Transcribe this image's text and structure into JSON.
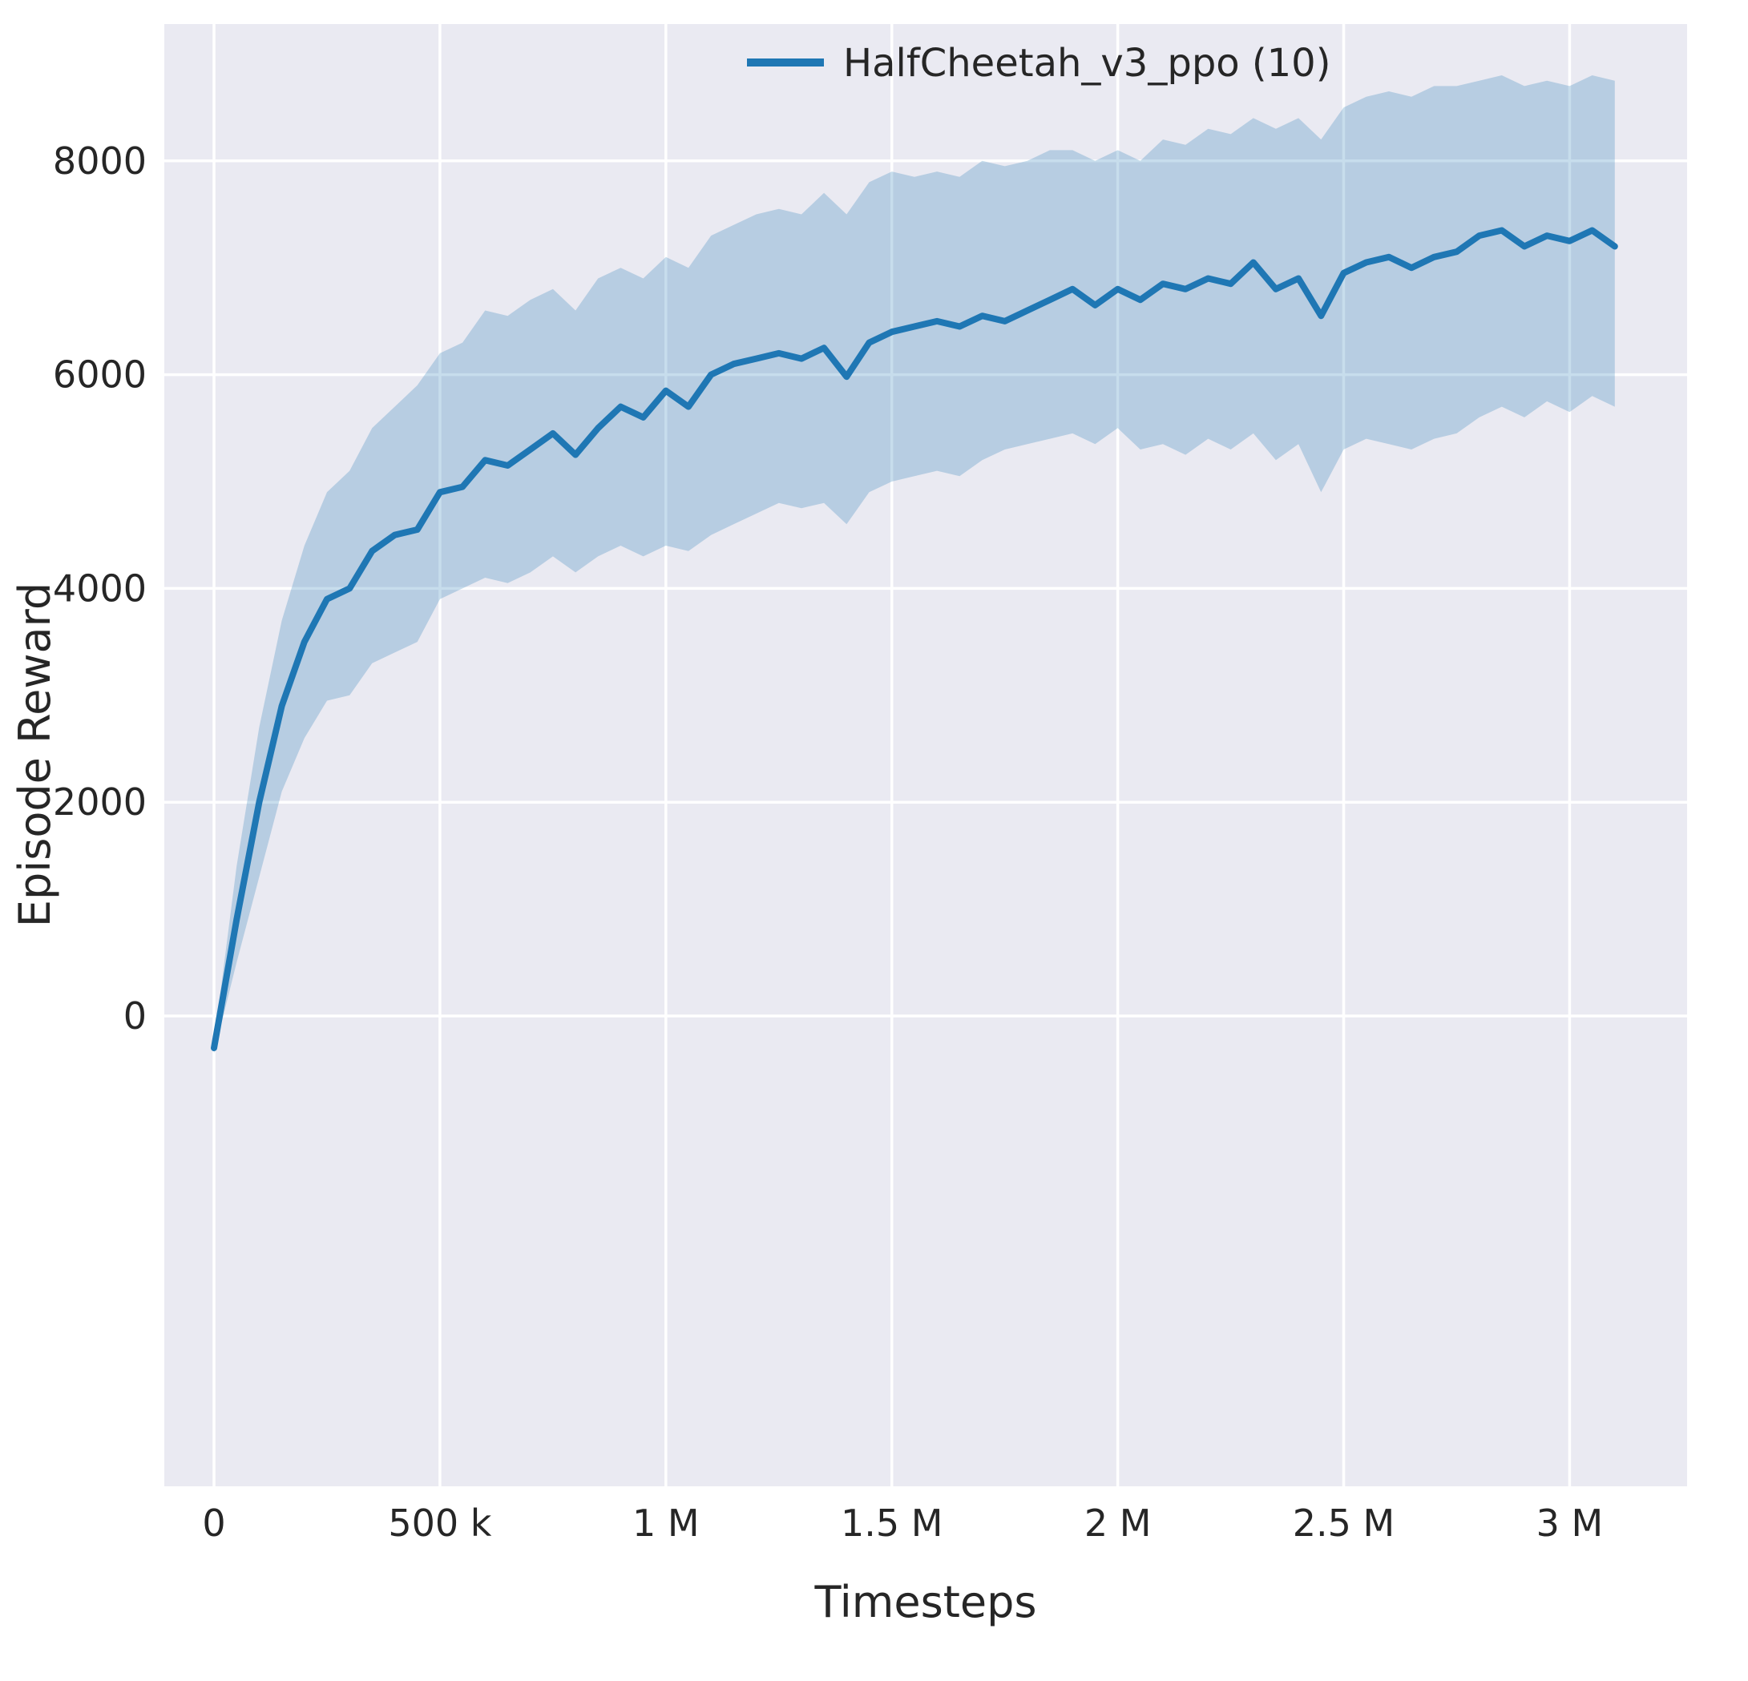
{
  "figure": {
    "background": "#ffffff",
    "plot_background": "#eaeaf2",
    "grid_color": "#ffffff",
    "text_color": "#262626",
    "line_color": "#1f77b4",
    "band_color": "#1f77b4",
    "band_opacity": 0.25
  },
  "chart_data": {
    "type": "line",
    "title": "",
    "xlabel": "Timesteps",
    "ylabel": "Episode Reward",
    "grid": true,
    "legend_position": "upper right",
    "legend": [
      {
        "label": "HalfCheetah_v3_ppo (10)",
        "color": "#1f77b4"
      }
    ],
    "xlim": [
      -110000,
      3260000
    ],
    "ylim": [
      -4400,
      9280
    ],
    "xticks": [
      {
        "value": 0,
        "label": "0"
      },
      {
        "value": 500000,
        "label": "500 k"
      },
      {
        "value": 1000000,
        "label": "1 M"
      },
      {
        "value": 1500000,
        "label": "1.5 M"
      },
      {
        "value": 2000000,
        "label": "2 M"
      },
      {
        "value": 2500000,
        "label": "2.5 M"
      },
      {
        "value": 3000000,
        "label": "3 M"
      }
    ],
    "yticks": [
      {
        "value": 0,
        "label": "0"
      },
      {
        "value": 2000,
        "label": "2000"
      },
      {
        "value": 4000,
        "label": "4000"
      },
      {
        "value": 6000,
        "label": "6000"
      },
      {
        "value": 8000,
        "label": "8000"
      }
    ],
    "series": [
      {
        "name": "HalfCheetah_v3_ppo (10)",
        "x": [
          0,
          50000,
          100000,
          150000,
          200000,
          250000,
          300000,
          350000,
          400000,
          450000,
          500000,
          550000,
          600000,
          650000,
          700000,
          750000,
          800000,
          850000,
          900000,
          950000,
          1000000,
          1050000,
          1100000,
          1150000,
          1200000,
          1250000,
          1300000,
          1350000,
          1400000,
          1450000,
          1500000,
          1550000,
          1600000,
          1650000,
          1700000,
          1750000,
          1800000,
          1850000,
          1900000,
          1950000,
          2000000,
          2050000,
          2100000,
          2150000,
          2200000,
          2250000,
          2300000,
          2350000,
          2400000,
          2450000,
          2500000,
          2550000,
          2600000,
          2650000,
          2700000,
          2750000,
          2800000,
          2850000,
          2900000,
          2950000,
          3000000,
          3050000,
          3100000
        ],
        "mean": [
          -300,
          900,
          2000,
          2900,
          3500,
          3900,
          4000,
          4350,
          4500,
          4550,
          4900,
          4950,
          5200,
          5150,
          5300,
          5450,
          5250,
          5500,
          5700,
          5600,
          5850,
          5700,
          6000,
          6100,
          6150,
          6200,
          6150,
          6250,
          5980,
          6300,
          6400,
          6450,
          6500,
          6450,
          6550,
          6500,
          6600,
          6700,
          6800,
          6650,
          6800,
          6700,
          6850,
          6800,
          6900,
          6850,
          7050,
          6800,
          6900,
          6550,
          6950,
          7050,
          7100,
          7000,
          7100,
          7150,
          7300,
          7350,
          7200,
          7300,
          7250,
          7350,
          7200
        ],
        "lower": [
          -350,
          500,
          1300,
          2100,
          2600,
          2950,
          3000,
          3300,
          3400,
          3500,
          3900,
          4000,
          4100,
          4050,
          4150,
          4300,
          4150,
          4300,
          4400,
          4300,
          4400,
          4350,
          4500,
          4600,
          4700,
          4800,
          4750,
          4800,
          4600,
          4900,
          5000,
          5050,
          5100,
          5050,
          5200,
          5300,
          5350,
          5400,
          5450,
          5350,
          5500,
          5300,
          5350,
          5250,
          5400,
          5300,
          5450,
          5200,
          5350,
          4900,
          5300,
          5400,
          5350,
          5300,
          5400,
          5450,
          5600,
          5700,
          5600,
          5750,
          5650,
          5800,
          5700
        ],
        "upper": [
          -250,
          1400,
          2700,
          3700,
          4400,
          4900,
          5100,
          5500,
          5700,
          5900,
          6200,
          6300,
          6600,
          6550,
          6700,
          6800,
          6600,
          6900,
          7000,
          6900,
          7100,
          7000,
          7300,
          7400,
          7500,
          7550,
          7500,
          7700,
          7500,
          7800,
          7900,
          7850,
          7900,
          7850,
          8000,
          7950,
          8000,
          8100,
          8100,
          8000,
          8100,
          8000,
          8200,
          8150,
          8300,
          8250,
          8400,
          8300,
          8400,
          8200,
          8500,
          8600,
          8650,
          8600,
          8700,
          8700,
          8750,
          8800,
          8700,
          8750,
          8700,
          8800,
          8750
        ]
      }
    ]
  }
}
